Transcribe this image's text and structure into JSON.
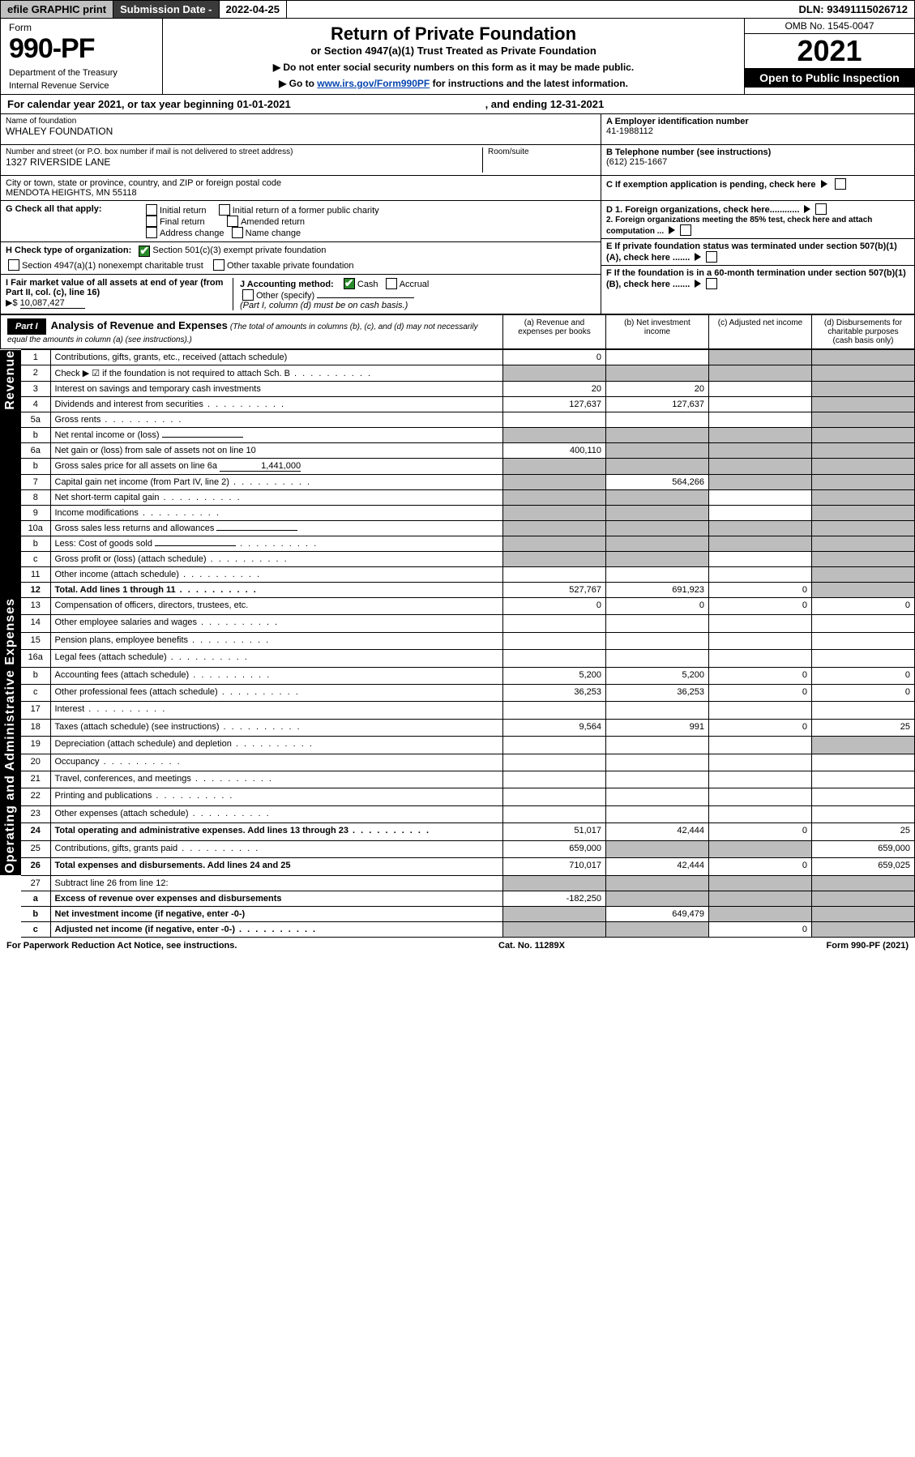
{
  "topbar": {
    "efile": "efile GRAPHIC print",
    "sub_date_lbl": "Submission Date - ",
    "sub_date": "2022-04-25",
    "dln_lbl": "DLN: ",
    "dln": "93491115026712"
  },
  "header": {
    "form_word": "Form",
    "form_no": "990-PF",
    "dept": "Department of the Treasury",
    "irs": "Internal Revenue Service",
    "title": "Return of Private Foundation",
    "sub": "or Section 4947(a)(1) Trust Treated as Private Foundation",
    "note1": "▶ Do not enter social security numbers on this form as it may be made public.",
    "note2_pre": "▶ Go to ",
    "note2_link": "www.irs.gov/Form990PF",
    "note2_post": " for instructions and the latest information.",
    "omb": "OMB No. 1545-0047",
    "year": "2021",
    "open": "Open to Public Inspection"
  },
  "cal": {
    "line_a": "For calendar year 2021, or tax year beginning 01-01-2021",
    "line_b": ", and ending 12-31-2021"
  },
  "id": {
    "name_lbl": "Name of foundation",
    "name": "WHALEY FOUNDATION",
    "addr_lbl": "Number and street (or P.O. box number if mail is not delivered to street address)",
    "addr": "1327 RIVERSIDE LANE",
    "room_lbl": "Room/suite",
    "city_lbl": "City or town, state or province, country, and ZIP or foreign postal code",
    "city": "MENDOTA HEIGHTS, MN  55118",
    "ein_lbl": "A Employer identification number",
    "ein": "41-1988112",
    "tel_lbl": "B Telephone number (see instructions)",
    "tel": "(612) 215-1667",
    "c_lbl": "C If exemption application is pending, check here"
  },
  "checks": {
    "g_lbl": "G Check all that apply:",
    "g1": "Initial return",
    "g2": "Initial return of a former public charity",
    "g3": "Final return",
    "g4": "Amended return",
    "g5": "Address change",
    "g6": "Name change",
    "h_lbl": "H Check type of organization:",
    "h1": "Section 501(c)(3) exempt private foundation",
    "h2": "Section 4947(a)(1) nonexempt charitable trust",
    "h3": "Other taxable private foundation",
    "i_lbl": "I Fair market value of all assets at end of year (from Part II, col. (c), line 16)",
    "i_amt_lbl": "▶$ ",
    "i_amt": "10,087,427",
    "j_lbl": "J Accounting method:",
    "j1": "Cash",
    "j2": "Accrual",
    "j3": "Other (specify)",
    "j_note": "(Part I, column (d) must be on cash basis.)",
    "d1": "D 1. Foreign organizations, check here............",
    "d2": "2. Foreign organizations meeting the 85% test, check here and attach computation ...",
    "e": "E  If private foundation status was terminated under section 507(b)(1)(A), check here .......",
    "f": "F  If the foundation is in a 60-month termination under section 507(b)(1)(B), check here ......."
  },
  "part1": {
    "hdr": "Part I",
    "title": "Analysis of Revenue and Expenses",
    "note": "(The total of amounts in columns (b), (c), and (d) may not necessarily equal the amounts in column (a) (see instructions).)",
    "col_a": "(a)  Revenue and expenses per books",
    "col_b": "(b)  Net investment income",
    "col_c": "(c)  Adjusted net income",
    "col_d": "(d)  Disbursements for charitable purposes (cash basis only)"
  },
  "sections": {
    "rev": "Revenue",
    "op": "Operating and Administrative Expenses"
  },
  "rows": [
    {
      "n": "1",
      "t": "Contributions, gifts, grants, etc., received (attach schedule)",
      "a": "0",
      "b": "",
      "c": "g",
      "d": "g"
    },
    {
      "n": "2",
      "t": "Check ▶ ☑ if the foundation is not required to attach Sch. B",
      "a": "g",
      "b": "g",
      "c": "g",
      "d": "g",
      "dots": 1
    },
    {
      "n": "3",
      "t": "Interest on savings and temporary cash investments",
      "a": "20",
      "b": "20",
      "c": "",
      "d": "g"
    },
    {
      "n": "4",
      "t": "Dividends and interest from securities",
      "a": "127,637",
      "b": "127,637",
      "c": "",
      "d": "g",
      "dots": 1
    },
    {
      "n": "5a",
      "t": "Gross rents",
      "a": "",
      "b": "",
      "c": "",
      "d": "g",
      "dots": 1
    },
    {
      "n": "b",
      "t": "Net rental income or (loss)",
      "a": "g",
      "b": "g",
      "c": "g",
      "d": "g",
      "uline": 1
    },
    {
      "n": "6a",
      "t": "Net gain or (loss) from sale of assets not on line 10",
      "a": "400,110",
      "b": "g",
      "c": "g",
      "d": "g"
    },
    {
      "n": "b",
      "t": "Gross sales price for all assets on line 6a",
      "a": "g",
      "b": "g",
      "c": "g",
      "d": "g",
      "uline": 1,
      "uval": "1,441,000"
    },
    {
      "n": "7",
      "t": "Capital gain net income (from Part IV, line 2)",
      "a": "g",
      "b": "564,266",
      "c": "g",
      "d": "g",
      "dots": 1
    },
    {
      "n": "8",
      "t": "Net short-term capital gain",
      "a": "g",
      "b": "g",
      "c": "",
      "d": "g",
      "dots": 1
    },
    {
      "n": "9",
      "t": "Income modifications",
      "a": "g",
      "b": "g",
      "c": "",
      "d": "g",
      "dots": 1
    },
    {
      "n": "10a",
      "t": "Gross sales less returns and allowances",
      "a": "g",
      "b": "g",
      "c": "g",
      "d": "g",
      "uline": 1
    },
    {
      "n": "b",
      "t": "Less: Cost of goods sold",
      "a": "g",
      "b": "g",
      "c": "g",
      "d": "g",
      "uline": 1,
      "dots": 1
    },
    {
      "n": "c",
      "t": "Gross profit or (loss) (attach schedule)",
      "a": "g",
      "b": "g",
      "c": "",
      "d": "g",
      "dots": 1
    },
    {
      "n": "11",
      "t": "Other income (attach schedule)",
      "a": "",
      "b": "",
      "c": "",
      "d": "g",
      "dots": 1
    },
    {
      "n": "12",
      "t": "Total. Add lines 1 through 11",
      "a": "527,767",
      "b": "691,923",
      "c": "0",
      "d": "g",
      "bold": 1,
      "dots": 1
    }
  ],
  "rows2": [
    {
      "n": "13",
      "t": "Compensation of officers, directors, trustees, etc.",
      "a": "0",
      "b": "0",
      "c": "0",
      "d": "0"
    },
    {
      "n": "14",
      "t": "Other employee salaries and wages",
      "a": "",
      "b": "",
      "c": "",
      "d": "",
      "dots": 1
    },
    {
      "n": "15",
      "t": "Pension plans, employee benefits",
      "a": "",
      "b": "",
      "c": "",
      "d": "",
      "dots": 1
    },
    {
      "n": "16a",
      "t": "Legal fees (attach schedule)",
      "a": "",
      "b": "",
      "c": "",
      "d": "",
      "dots": 1
    },
    {
      "n": "b",
      "t": "Accounting fees (attach schedule)",
      "a": "5,200",
      "b": "5,200",
      "c": "0",
      "d": "0",
      "dots": 1
    },
    {
      "n": "c",
      "t": "Other professional fees (attach schedule)",
      "a": "36,253",
      "b": "36,253",
      "c": "0",
      "d": "0",
      "dots": 1
    },
    {
      "n": "17",
      "t": "Interest",
      "a": "",
      "b": "",
      "c": "",
      "d": "",
      "dots": 1
    },
    {
      "n": "18",
      "t": "Taxes (attach schedule) (see instructions)",
      "a": "9,564",
      "b": "991",
      "c": "0",
      "d": "25",
      "dots": 1
    },
    {
      "n": "19",
      "t": "Depreciation (attach schedule) and depletion",
      "a": "",
      "b": "",
      "c": "",
      "d": "g",
      "dots": 1
    },
    {
      "n": "20",
      "t": "Occupancy",
      "a": "",
      "b": "",
      "c": "",
      "d": "",
      "dots": 1
    },
    {
      "n": "21",
      "t": "Travel, conferences, and meetings",
      "a": "",
      "b": "",
      "c": "",
      "d": "",
      "dots": 1
    },
    {
      "n": "22",
      "t": "Printing and publications",
      "a": "",
      "b": "",
      "c": "",
      "d": "",
      "dots": 1
    },
    {
      "n": "23",
      "t": "Other expenses (attach schedule)",
      "a": "",
      "b": "",
      "c": "",
      "d": "",
      "dots": 1
    },
    {
      "n": "24",
      "t": "Total operating and administrative expenses. Add lines 13 through 23",
      "a": "51,017",
      "b": "42,444",
      "c": "0",
      "d": "25",
      "bold": 1,
      "dots": 1
    },
    {
      "n": "25",
      "t": "Contributions, gifts, grants paid",
      "a": "659,000",
      "b": "g",
      "c": "g",
      "d": "659,000",
      "dots": 1
    },
    {
      "n": "26",
      "t": "Total expenses and disbursements. Add lines 24 and 25",
      "a": "710,017",
      "b": "42,444",
      "c": "0",
      "d": "659,025",
      "bold": 1
    }
  ],
  "rows3": [
    {
      "n": "27",
      "t": "Subtract line 26 from line 12:",
      "a": "g",
      "b": "g",
      "c": "g",
      "d": "g"
    },
    {
      "n": "a",
      "t": "Excess of revenue over expenses and disbursements",
      "a": "-182,250",
      "b": "g",
      "c": "g",
      "d": "g",
      "bold": 1
    },
    {
      "n": "b",
      "t": "Net investment income (if negative, enter -0-)",
      "a": "g",
      "b": "649,479",
      "c": "g",
      "d": "g",
      "bold": 1
    },
    {
      "n": "c",
      "t": "Adjusted net income (if negative, enter -0-)",
      "a": "g",
      "b": "g",
      "c": "0",
      "d": "g",
      "bold": 1,
      "dots": 1
    }
  ],
  "footer": {
    "left": "For Paperwork Reduction Act Notice, see instructions.",
    "mid": "Cat. No. 11289X",
    "right": "Form 990-PF (2021)"
  }
}
